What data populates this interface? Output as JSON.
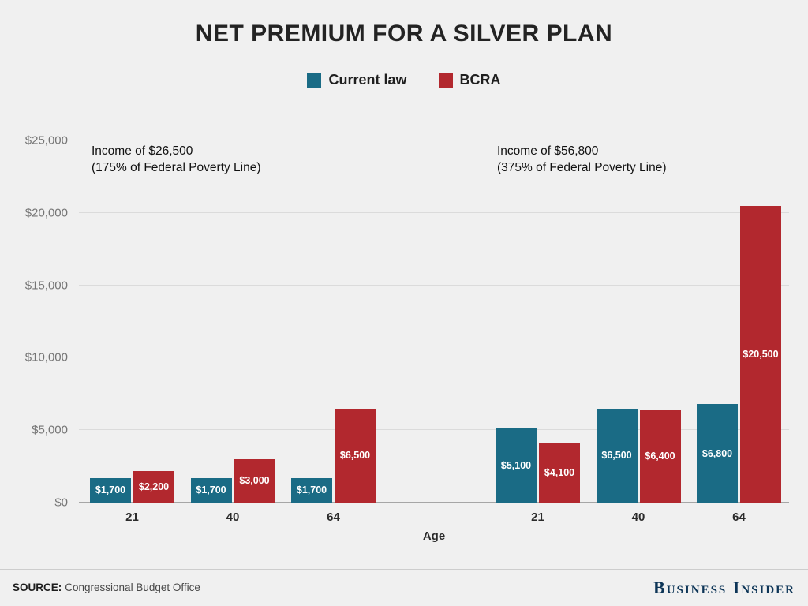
{
  "title": "NET PREMIUM FOR A SILVER PLAN",
  "legend": [
    {
      "label": "Current law",
      "color": "#1a6b85"
    },
    {
      "label": "BCRA",
      "color": "#b2282e"
    }
  ],
  "chart_data": {
    "type": "bar",
    "title": "NET PREMIUM FOR A SILVER PLAN",
    "xlabel": "Age",
    "ylabel": "",
    "ylim": [
      0,
      25000
    ],
    "yticks": [
      "$0",
      "$5,000",
      "$10,000",
      "$15,000",
      "$20,000",
      "$25,000"
    ],
    "grid": true,
    "legend_position": "top",
    "groups": [
      {
        "annotation": [
          "Income of $26,500",
          "(175% of Federal Poverty Line)"
        ],
        "categories": [
          "21",
          "40",
          "64"
        ],
        "series": [
          {
            "name": "Current law",
            "values": [
              1700,
              1700,
              1700
            ],
            "labels": [
              "$1,700",
              "$1,700",
              "$1,700"
            ]
          },
          {
            "name": "BCRA",
            "values": [
              2200,
              3000,
              6500
            ],
            "labels": [
              "$2,200",
              "$3,000",
              "$6,500"
            ]
          }
        ]
      },
      {
        "annotation": [
          "Income of $56,800",
          "(375% of Federal Poverty Line)"
        ],
        "categories": [
          "21",
          "40",
          "64"
        ],
        "series": [
          {
            "name": "Current law",
            "values": [
              5100,
              6500,
              6800
            ],
            "labels": [
              "$5,100",
              "$6,500",
              "$6,800"
            ]
          },
          {
            "name": "BCRA",
            "values": [
              4100,
              6400,
              20500
            ],
            "labels": [
              "$4,100",
              "$6,400",
              "$20,500"
            ]
          }
        ]
      }
    ]
  },
  "footer": {
    "source_label": "SOURCE:",
    "source_text": "Congressional Budget Office",
    "brand": "Business Insider",
    "brand_color": "#0d3557"
  }
}
